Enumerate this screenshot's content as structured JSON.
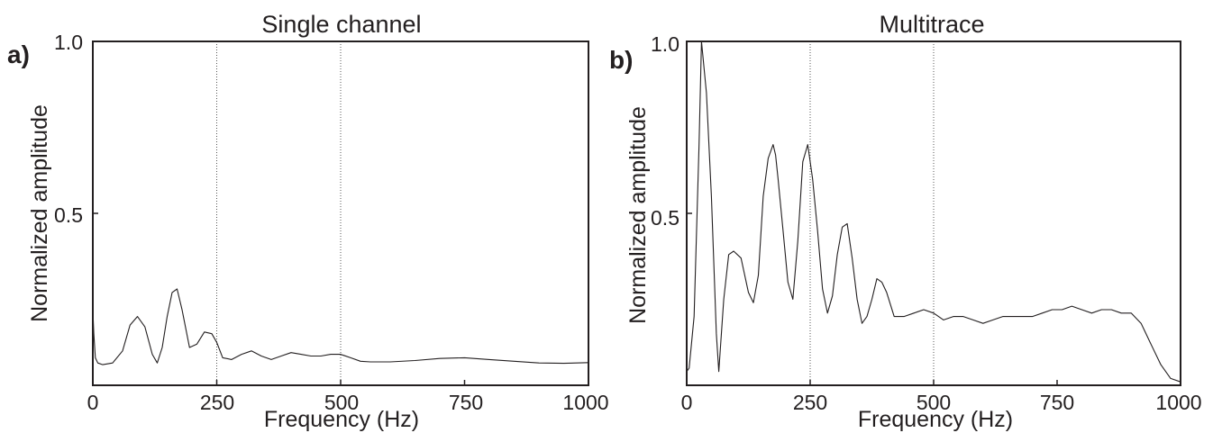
{
  "chart_data": [
    {
      "panel_label": "a)",
      "type": "line",
      "title": "Single channel",
      "xlabel": "Frequency (Hz)",
      "ylabel": "Normalized amplitude",
      "xlim": [
        0,
        1000
      ],
      "ylim": [
        0,
        1.0
      ],
      "xticks": [
        "0",
        "250",
        "500",
        "750",
        "1000"
      ],
      "yticks": [
        "0.5",
        "1.0"
      ],
      "ytick_values": [
        0.5,
        1.0
      ],
      "xtick_values": [
        0,
        250,
        500,
        750,
        1000
      ],
      "grid_x": [
        250,
        500
      ],
      "series": [
        {
          "x": [
            0,
            2,
            5,
            10,
            20,
            40,
            60,
            75,
            90,
            105,
            120,
            130,
            140,
            150,
            160,
            170,
            180,
            195,
            210,
            225,
            240,
            250,
            262,
            280,
            300,
            320,
            340,
            360,
            380,
            400,
            420,
            440,
            460,
            480,
            500,
            520,
            540,
            560,
            600,
            650,
            700,
            750,
            800,
            850,
            900,
            950,
            1000
          ],
          "y": [
            0.22,
            0.15,
            0.08,
            0.065,
            0.06,
            0.065,
            0.1,
            0.175,
            0.2,
            0.17,
            0.09,
            0.065,
            0.11,
            0.2,
            0.27,
            0.28,
            0.22,
            0.11,
            0.12,
            0.155,
            0.15,
            0.125,
            0.08,
            0.075,
            0.09,
            0.1,
            0.085,
            0.075,
            0.085,
            0.095,
            0.09,
            0.085,
            0.085,
            0.09,
            0.09,
            0.08,
            0.07,
            0.068,
            0.068,
            0.072,
            0.078,
            0.08,
            0.075,
            0.07,
            0.065,
            0.064,
            0.066
          ]
        }
      ]
    },
    {
      "panel_label": "b)",
      "type": "line",
      "title": "Multitrace",
      "xlabel": "Frequency (Hz)",
      "ylabel": "Normalized amplitude",
      "xlim": [
        0,
        1000
      ],
      "ylim": [
        0,
        1.0
      ],
      "xticks": [
        "0",
        "250",
        "500",
        "750",
        "1000"
      ],
      "yticks": [
        "0.5",
        "1.0"
      ],
      "ytick_values": [
        0.5,
        1.0
      ],
      "xtick_values": [
        0,
        250,
        500,
        750,
        1000
      ],
      "grid_x": [
        250,
        500
      ],
      "series": [
        {
          "x": [
            0,
            5,
            15,
            25,
            30,
            40,
            50,
            60,
            65,
            75,
            85,
            95,
            110,
            125,
            135,
            145,
            155,
            165,
            175,
            180,
            185,
            195,
            205,
            215,
            225,
            235,
            245,
            255,
            265,
            275,
            285,
            295,
            305,
            315,
            325,
            335,
            345,
            355,
            365,
            375,
            385,
            395,
            405,
            420,
            440,
            460,
            480,
            500,
            520,
            540,
            560,
            580,
            600,
            620,
            640,
            660,
            680,
            700,
            720,
            740,
            760,
            780,
            800,
            820,
            840,
            860,
            880,
            900,
            920,
            940,
            960,
            980,
            1000
          ],
          "y": [
            0.04,
            0.05,
            0.2,
            0.7,
            1.0,
            0.85,
            0.55,
            0.15,
            0.04,
            0.25,
            0.38,
            0.39,
            0.37,
            0.27,
            0.24,
            0.32,
            0.55,
            0.66,
            0.7,
            0.67,
            0.6,
            0.45,
            0.3,
            0.25,
            0.42,
            0.65,
            0.7,
            0.6,
            0.45,
            0.28,
            0.21,
            0.26,
            0.38,
            0.46,
            0.47,
            0.37,
            0.25,
            0.18,
            0.2,
            0.25,
            0.31,
            0.3,
            0.27,
            0.2,
            0.2,
            0.21,
            0.22,
            0.21,
            0.19,
            0.2,
            0.2,
            0.19,
            0.18,
            0.19,
            0.2,
            0.2,
            0.2,
            0.2,
            0.21,
            0.22,
            0.22,
            0.23,
            0.22,
            0.21,
            0.22,
            0.22,
            0.21,
            0.21,
            0.18,
            0.12,
            0.06,
            0.02,
            0.01
          ]
        }
      ]
    }
  ]
}
